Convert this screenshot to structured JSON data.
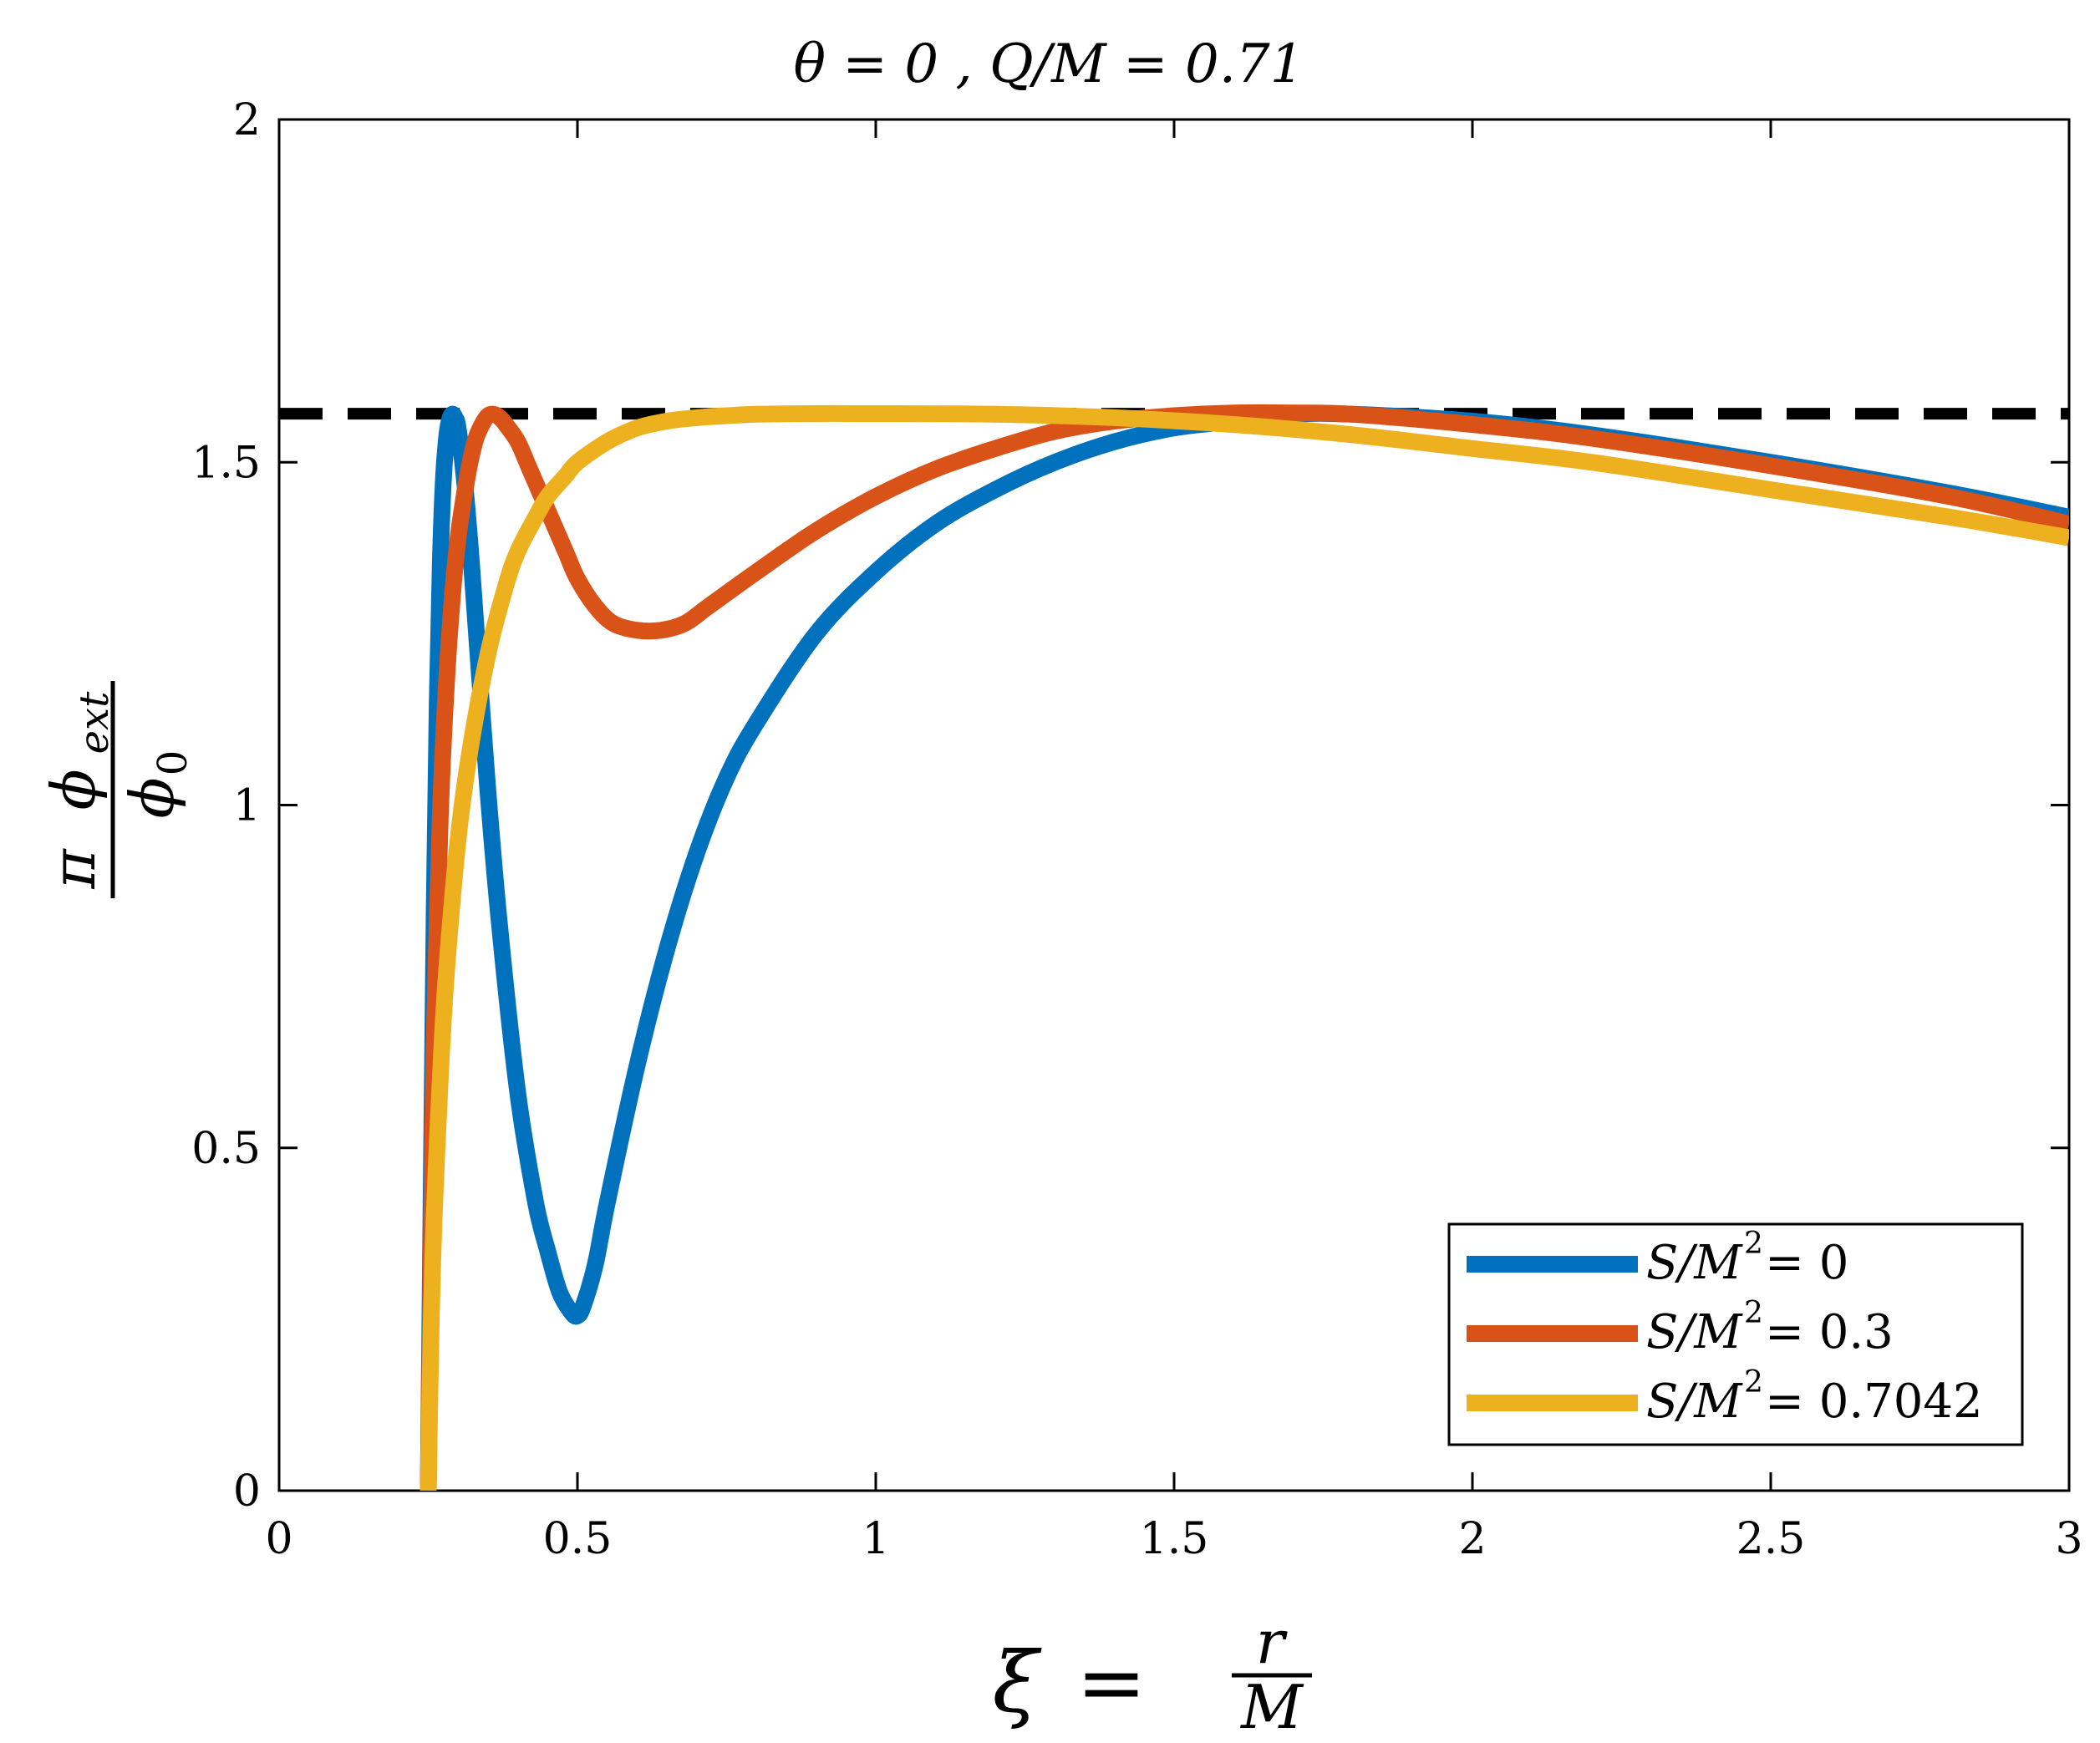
{
  "chart_data": {
    "type": "line",
    "title": "θ = 0 ,    Q/M = 0.71",
    "xlabel": "ξ = r/M",
    "ylabel": "π φ_ext / φ_0",
    "xlim": [
      0,
      3
    ],
    "ylim": [
      0,
      2
    ],
    "xticks": [
      "0",
      "0.5",
      "1",
      "1.5",
      "2",
      "2.5",
      "3"
    ],
    "yticks": [
      "0",
      "0.5",
      "1",
      "1.5",
      "2"
    ],
    "grid": false,
    "legend_position": "bottom-right",
    "reference_line": {
      "y": 1.5708,
      "style": "dashed",
      "color": "#000000"
    },
    "series": [
      {
        "name": "S/M^2 = 0",
        "color": "#0072BD",
        "x": [
          0.25,
          0.255,
          0.26,
          0.265,
          0.27,
          0.275,
          0.28,
          0.285,
          0.29,
          0.295,
          0.3,
          0.31,
          0.32,
          0.33,
          0.35,
          0.37,
          0.4,
          0.43,
          0.45,
          0.47,
          0.49,
          0.5,
          0.51,
          0.53,
          0.55,
          0.6,
          0.65,
          0.7,
          0.75,
          0.8,
          0.9,
          1.0,
          1.1,
          1.2,
          1.3,
          1.4,
          1.5,
          1.6,
          1.7,
          1.8,
          2.0,
          2.2,
          2.5,
          2.8,
          3.0
        ],
        "y": [
          0.0,
          0.45,
          0.85,
          1.15,
          1.35,
          1.47,
          1.53,
          1.56,
          1.57,
          1.565,
          1.55,
          1.48,
          1.38,
          1.26,
          1.02,
          0.82,
          0.58,
          0.42,
          0.35,
          0.29,
          0.26,
          0.255,
          0.27,
          0.33,
          0.42,
          0.62,
          0.79,
          0.93,
          1.04,
          1.12,
          1.25,
          1.34,
          1.41,
          1.46,
          1.5,
          1.53,
          1.55,
          1.56,
          1.57,
          1.57,
          1.56,
          1.54,
          1.5,
          1.455,
          1.42
        ]
      },
      {
        "name": "S/M^2 = 0.3",
        "color": "#D95319",
        "x": [
          0.25,
          0.255,
          0.26,
          0.27,
          0.28,
          0.29,
          0.3,
          0.31,
          0.32,
          0.33,
          0.34,
          0.35,
          0.36,
          0.37,
          0.38,
          0.4,
          0.42,
          0.45,
          0.48,
          0.5,
          0.53,
          0.56,
          0.6,
          0.64,
          0.68,
          0.72,
          0.8,
          0.9,
          1.0,
          1.1,
          1.2,
          1.3,
          1.4,
          1.5,
          1.6,
          1.7,
          1.8,
          2.0,
          2.2,
          2.5,
          2.8,
          3.0
        ],
        "y": [
          0.0,
          0.35,
          0.65,
          0.98,
          1.17,
          1.3,
          1.39,
          1.45,
          1.5,
          1.535,
          1.555,
          1.568,
          1.57,
          1.565,
          1.555,
          1.53,
          1.49,
          1.43,
          1.37,
          1.33,
          1.29,
          1.265,
          1.255,
          1.255,
          1.265,
          1.29,
          1.34,
          1.4,
          1.45,
          1.49,
          1.52,
          1.545,
          1.56,
          1.568,
          1.572,
          1.572,
          1.57,
          1.555,
          1.535,
          1.495,
          1.45,
          1.41
        ]
      },
      {
        "name": "S/M^2 = 0.7042",
        "color": "#EDB120",
        "x": [
          0.25,
          0.255,
          0.26,
          0.27,
          0.28,
          0.3,
          0.32,
          0.35,
          0.38,
          0.4,
          0.43,
          0.45,
          0.48,
          0.5,
          0.55,
          0.6,
          0.65,
          0.7,
          0.75,
          0.8,
          0.9,
          1.0,
          1.2,
          1.4,
          1.6,
          1.8,
          2.0,
          2.2,
          2.5,
          2.8,
          3.0
        ],
        "y": [
          0.0,
          0.25,
          0.4,
          0.6,
          0.75,
          0.95,
          1.08,
          1.22,
          1.32,
          1.37,
          1.42,
          1.45,
          1.48,
          1.5,
          1.53,
          1.55,
          1.56,
          1.565,
          1.568,
          1.57,
          1.571,
          1.571,
          1.57,
          1.565,
          1.555,
          1.54,
          1.52,
          1.5,
          1.46,
          1.42,
          1.39
        ]
      }
    ]
  }
}
